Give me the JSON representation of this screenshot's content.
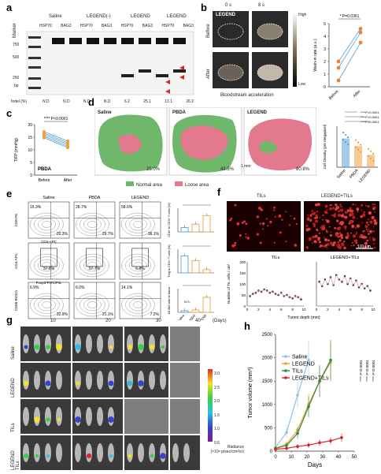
{
  "panels": {
    "a": {
      "label": "a",
      "marker_label": "Marker",
      "group_labels": [
        "Saline",
        "LEGEND(-)",
        "LEGEND",
        "LEGEND"
      ],
      "lane_labels": [
        "HSP70",
        "BAG3",
        "HSP70",
        "BAG3",
        "HSP70",
        "BAG3",
        "HSP70",
        "BAG3"
      ],
      "ladder": [
        "750",
        "500",
        "250",
        "bp"
      ],
      "indel_label": "Indel (%)",
      "indel_values": [
        "N.D",
        "N.D",
        "N.D",
        "N.D",
        "6.2",
        "25.1",
        "13.1",
        "26.2"
      ]
    },
    "b": {
      "label": "b",
      "times": [
        "0 s",
        "8 s"
      ],
      "legend_tag": "LEGEND",
      "rows": [
        "Before",
        "After"
      ],
      "caption": "Bloodstream acceleration",
      "scale_high": "High",
      "scale_low": "Low",
      "plot_ylabel": "Wash-in rate (a.u.)",
      "plot_p": "* P=0.0361",
      "plot_x": [
        "Before",
        "After"
      ]
    },
    "c": {
      "label": "c",
      "ylabel": "TIFP (mmHg)",
      "p": "**** P<0.0001",
      "group": "PBDA",
      "x": [
        "Before",
        "After"
      ],
      "yticks": [
        "20",
        "15",
        "10",
        "5",
        "0"
      ]
    },
    "d": {
      "label": "d",
      "titles": [
        "Saline",
        "PBDA",
        "LEGEND"
      ],
      "percents": [
        "25.0%",
        "49.5%",
        "80.8%"
      ],
      "scale": "1 mm",
      "legend": [
        "Normal area",
        "Loose area"
      ],
      "plot_ylabel": "Cell Density (per megapixel)",
      "plot_x": [
        "Saline",
        "PBDA",
        "LEGEND"
      ],
      "plot_p": [
        "****P<0.0001",
        "****P<0.0001",
        "****P<0.0001"
      ]
    },
    "e": {
      "label": "e",
      "cols": [
        "Saline",
        "PBDA",
        "LEGEND"
      ],
      "row1_q": [
        [
          "16.3%",
          "20.3%"
        ],
        [
          "28.7%",
          "29.7%"
        ],
        [
          "58.6%",
          "36.1%"
        ]
      ],
      "row2_q": [
        "37.6%",
        "27.7%",
        "6.8%"
      ],
      "row3_q": [
        [
          "6.9%",
          "32.9%"
        ],
        [
          "6.0%",
          "21.1%"
        ],
        [
          "14.1%",
          "7.2%"
        ]
      ],
      "row1_ax": [
        "CD8-PE",
        "CD4-APC"
      ],
      "row2_ax": [
        "CD4-APC",
        "Foxp3-FITC/Fitc"
      ],
      "row3_ax": [
        "CD86-BV421",
        "CD206-AF647"
      ],
      "bar_ylabels": [
        "CD8+ in CD3+ T cells (%)",
        "Treg in CD4+ T cells (%)",
        "M1/M2 ratio in tumor"
      ],
      "bar_x": [
        "Saline",
        "PBDA",
        "LEGEND"
      ],
      "ns": "N.S."
    },
    "f": {
      "label": "f",
      "img_titles": [
        "TILs",
        "LEGEND+TILs"
      ],
      "scale": "100 μm",
      "plot_titles": [
        "TILs",
        "LEGEND+TILs"
      ],
      "ylabel": "Number of TIL cells / cm²",
      "xlabel": "Tumor depth (mm)",
      "xticks": [
        "0",
        "2",
        "4",
        "6",
        "8",
        "10"
      ],
      "yticks": [
        "200",
        "150",
        "100",
        "50",
        "0"
      ]
    },
    "g": {
      "label": "g",
      "days": [
        "10",
        "20",
        "30",
        "40"
      ],
      "days_unit": "(Days)",
      "rows": [
        "Saline",
        "LEGEND",
        "TILs",
        "LEGEND\nTILs"
      ],
      "colorbar_ticks": [
        "3.0",
        "2.5",
        "2.0",
        "1.5",
        "1.0",
        "0.5"
      ],
      "colorbar_label": "Radiance\n(×10⁸ p/sec/cm²/sr)"
    },
    "h": {
      "label": "h",
      "ylabel": "Tumor volume (mm³)",
      "xlabel": "Days",
      "series_names": [
        "Saline",
        "LEGEND",
        "TILs",
        "LEGEND+TILs"
      ],
      "side_p": [
        "**** P<0.0001",
        "**** P<0.0001",
        "**** P<0.0001"
      ]
    }
  },
  "chart_data": [
    {
      "type": "line",
      "id": "b-washin",
      "x": [
        "Before",
        "After"
      ],
      "series": [
        {
          "values": [
            0.5,
            3.5
          ]
        },
        {
          "values": [
            1.5,
            4.3
          ]
        },
        {
          "values": [
            2.0,
            4.6
          ]
        }
      ],
      "ylabel": "Wash-in rate (a.u.)",
      "ylim": [
        0,
        5
      ]
    },
    {
      "type": "line",
      "id": "c-tifp",
      "x": [
        "Before",
        "After"
      ],
      "series": [
        {
          "values": [
            17.2,
            13.5
          ]
        },
        {
          "values": [
            16.6,
            12.8
          ]
        },
        {
          "values": [
            16.0,
            12.2
          ]
        },
        {
          "values": [
            15.4,
            11.5
          ]
        },
        {
          "values": [
            14.8,
            10.9
          ]
        }
      ],
      "ylabel": "TIFP (mmHg)",
      "ylim": [
        0,
        20
      ]
    },
    {
      "type": "bar",
      "id": "d-density",
      "categories": [
        "Saline",
        "PBDA",
        "LEGEND"
      ],
      "values": [
        4200,
        3100,
        1800
      ],
      "ylabel": "Cell Density (per megapixel)",
      "ylim": [
        0,
        6000
      ]
    },
    {
      "type": "bar",
      "id": "e-cd8",
      "categories": [
        "Saline",
        "PBDA",
        "LEGEND"
      ],
      "values": [
        15,
        26,
        55
      ],
      "ylabel": "CD8+ in CD3+ T cells (%)",
      "ylim": [
        0,
        80
      ]
    },
    {
      "type": "bar",
      "id": "e-treg",
      "categories": [
        "Saline",
        "PBDA",
        "LEGEND"
      ],
      "values": [
        36,
        26,
        7
      ],
      "ylabel": "Treg in CD4+ T cells (%)",
      "ylim": [
        0,
        50
      ]
    },
    {
      "type": "bar",
      "id": "e-m1m2",
      "categories": [
        "Saline",
        "PBDA",
        "LEGEND"
      ],
      "values": [
        0.2,
        0.3,
        1.9
      ],
      "ylabel": "M1/M2 ratio in tumor",
      "ylim": [
        0,
        3
      ]
    },
    {
      "type": "scatter",
      "id": "f-tils",
      "xlabel": "Tumor depth (mm)",
      "ylabel": "Number of TIL cells / cm²",
      "title": "TILs",
      "x": [
        0.5,
        1,
        1.5,
        2,
        2.5,
        3,
        3.5,
        4,
        4.5,
        5,
        5.5,
        6,
        6.5,
        7,
        7.5,
        8,
        8.5,
        9,
        9.5
      ],
      "y": [
        45,
        55,
        60,
        70,
        65,
        75,
        70,
        60,
        65,
        55,
        50,
        60,
        45,
        50,
        40,
        35,
        45,
        40,
        30
      ],
      "xlim": [
        0,
        10
      ],
      "ylim": [
        0,
        200
      ]
    },
    {
      "type": "scatter",
      "id": "f-legend-tils",
      "xlabel": "Tumor depth (mm)",
      "ylabel": "Number of TIL cells / cm²",
      "title": "LEGEND+TILs",
      "x": [
        0.5,
        1,
        1.5,
        2,
        2.5,
        3,
        3.5,
        4,
        4.5,
        5,
        5.5,
        6,
        6.5,
        7,
        7.5,
        8,
        8.5,
        9,
        9.5
      ],
      "y": [
        110,
        90,
        120,
        100,
        130,
        95,
        140,
        120,
        110,
        135,
        100,
        125,
        95,
        115,
        85,
        100,
        80,
        90,
        70
      ],
      "xlim": [
        0,
        10
      ],
      "ylim": [
        0,
        200
      ]
    },
    {
      "type": "line",
      "id": "h-volume",
      "x": [
        0,
        7,
        14,
        21,
        28,
        35,
        42
      ],
      "series": [
        {
          "name": "Saline",
          "values": [
            80,
            400,
            1200,
            1950,
            null,
            null,
            null
          ]
        },
        {
          "name": "LEGEND",
          "values": [
            60,
            150,
            450,
            1000,
            1500,
            1900,
            null
          ]
        },
        {
          "name": "TILs",
          "values": [
            60,
            120,
            380,
            950,
            1500,
            1950,
            null
          ]
        },
        {
          "name": "LEGEND+TILs",
          "values": [
            40,
            60,
            100,
            130,
            180,
            220,
            290
          ]
        }
      ],
      "xlabel": "Days",
      "ylabel": "Tumor volume (mm³)",
      "xlim": [
        0,
        50
      ],
      "ylim": [
        0,
        2500
      ],
      "colors": [
        "#8fc3ea",
        "#f0a040",
        "#2e8b3a",
        "#d42020"
      ]
    }
  ]
}
